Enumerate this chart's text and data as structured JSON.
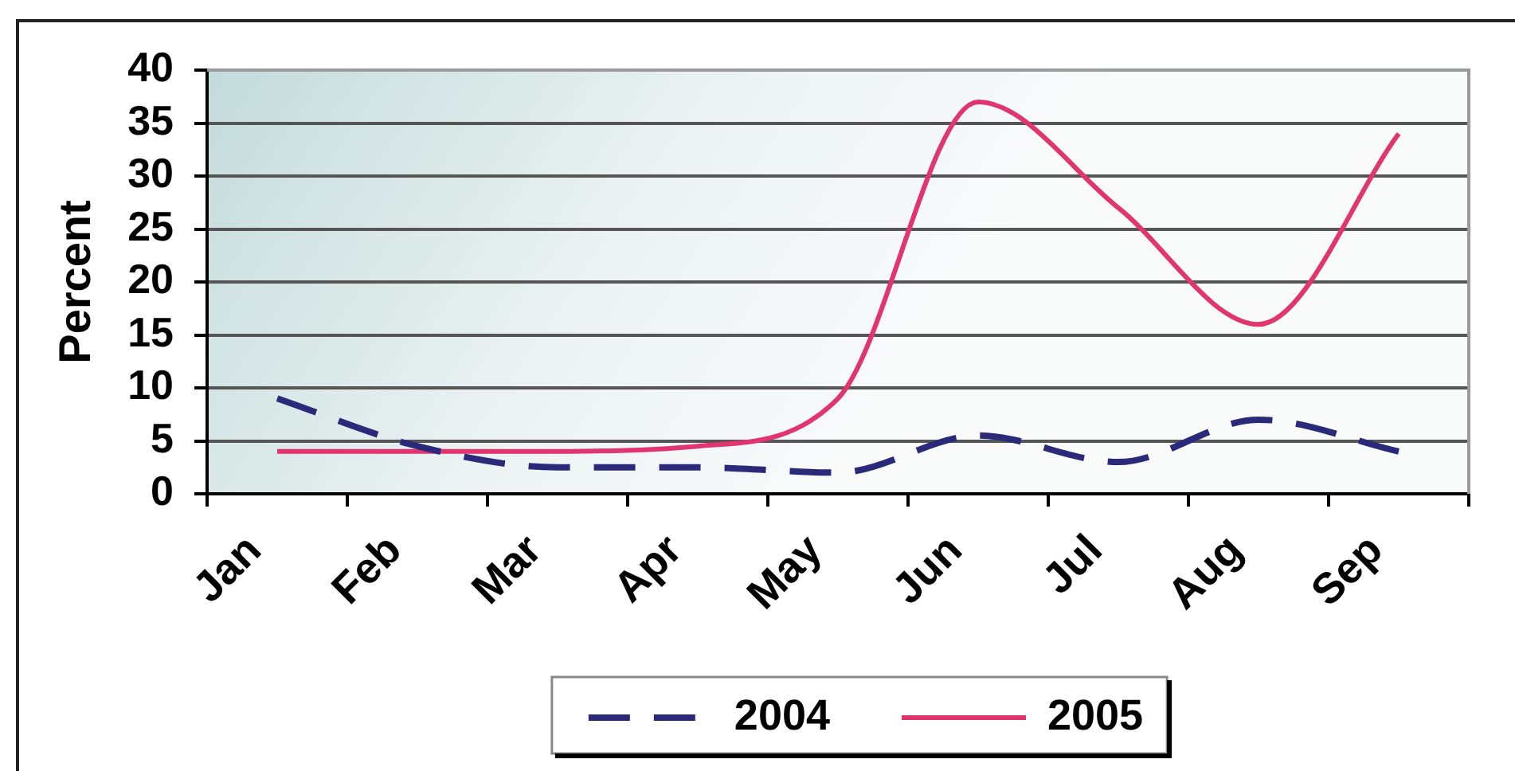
{
  "chart_data": {
    "type": "line",
    "ylabel": "Percent",
    "categories": [
      "Jan",
      "Feb",
      "Mar",
      "Apr",
      "May",
      "Jun",
      "Jul",
      "Aug",
      "Sep"
    ],
    "series": [
      {
        "name": "2004",
        "color": "#2b2a7a",
        "line_style": "dashed",
        "values": [
          9,
          4.5,
          2.5,
          2.5,
          2,
          5.5,
          3,
          7,
          4
        ]
      },
      {
        "name": "2005",
        "color": "#e0356f",
        "values": [
          4,
          4,
          4,
          4.5,
          9,
          37,
          27,
          16,
          34
        ]
      }
    ],
    "ylim": [
      0,
      40
    ],
    "yticks": [
      0,
      5,
      10,
      15,
      20,
      25,
      30,
      35,
      40
    ],
    "grid": "y",
    "legend": "bottom"
  }
}
